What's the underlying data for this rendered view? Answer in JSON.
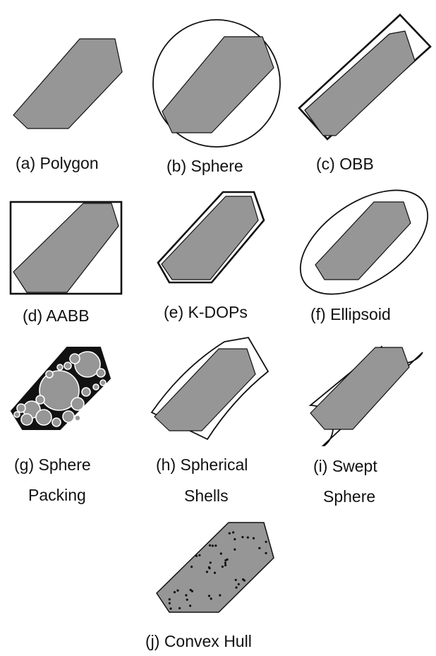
{
  "panels": [
    {
      "id": "a",
      "caption": "(a) Polygon"
    },
    {
      "id": "b",
      "caption": "(b) Sphere"
    },
    {
      "id": "c",
      "caption": "(c) OBB"
    },
    {
      "id": "d",
      "caption": "(d) AABB"
    },
    {
      "id": "e",
      "caption": "(e) K-DOPs"
    },
    {
      "id": "f",
      "caption": "(f) Ellipsoid"
    },
    {
      "id": "g",
      "caption": "(g) Sphere",
      "caption_line2": "Packing"
    },
    {
      "id": "h",
      "caption": "(h) Spherical",
      "caption_line2": "Shells"
    },
    {
      "id": "i",
      "caption": "(i) Swept",
      "caption_line2": "Sphere"
    },
    {
      "id": "j",
      "caption": "(j) Convex Hull"
    }
  ],
  "colors": {
    "fill": "#969696",
    "stroke": "#111111",
    "background": "#ffffff"
  }
}
